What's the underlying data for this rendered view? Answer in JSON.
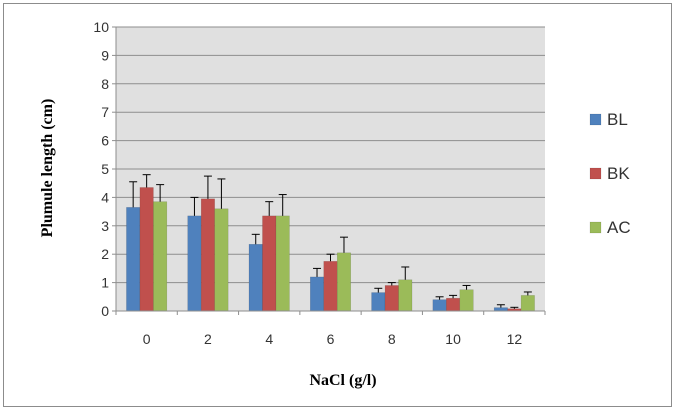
{
  "chart_data": {
    "type": "bar",
    "title": "",
    "xlabel": "NaCl (g/l)",
    "ylabel": "Plumule  length (cm)",
    "ylim": [
      0,
      10
    ],
    "yticks": [
      0,
      1,
      2,
      3,
      4,
      5,
      6,
      7,
      8,
      9,
      10
    ],
    "grid": true,
    "legend_position": "right",
    "categories": [
      "0",
      "2",
      "4",
      "6",
      "8",
      "10",
      "12"
    ],
    "series": [
      {
        "name": "BL",
        "color": "#4F81BD",
        "values": [
          3.65,
          3.35,
          2.35,
          1.2,
          0.65,
          0.4,
          0.12
        ],
        "errors": [
          0.9,
          0.65,
          0.35,
          0.3,
          0.15,
          0.1,
          0.1
        ]
      },
      {
        "name": "BK",
        "color": "#C0504D",
        "values": [
          4.35,
          3.95,
          3.35,
          1.75,
          0.9,
          0.45,
          0.08
        ],
        "errors": [
          0.45,
          0.8,
          0.5,
          0.25,
          0.1,
          0.1,
          0.05
        ]
      },
      {
        "name": "AC",
        "color": "#9BBB59",
        "values": [
          3.85,
          3.6,
          3.35,
          2.05,
          1.1,
          0.75,
          0.55
        ],
        "errors": [
          0.6,
          1.05,
          0.75,
          0.55,
          0.45,
          0.15,
          0.12
        ]
      }
    ]
  }
}
